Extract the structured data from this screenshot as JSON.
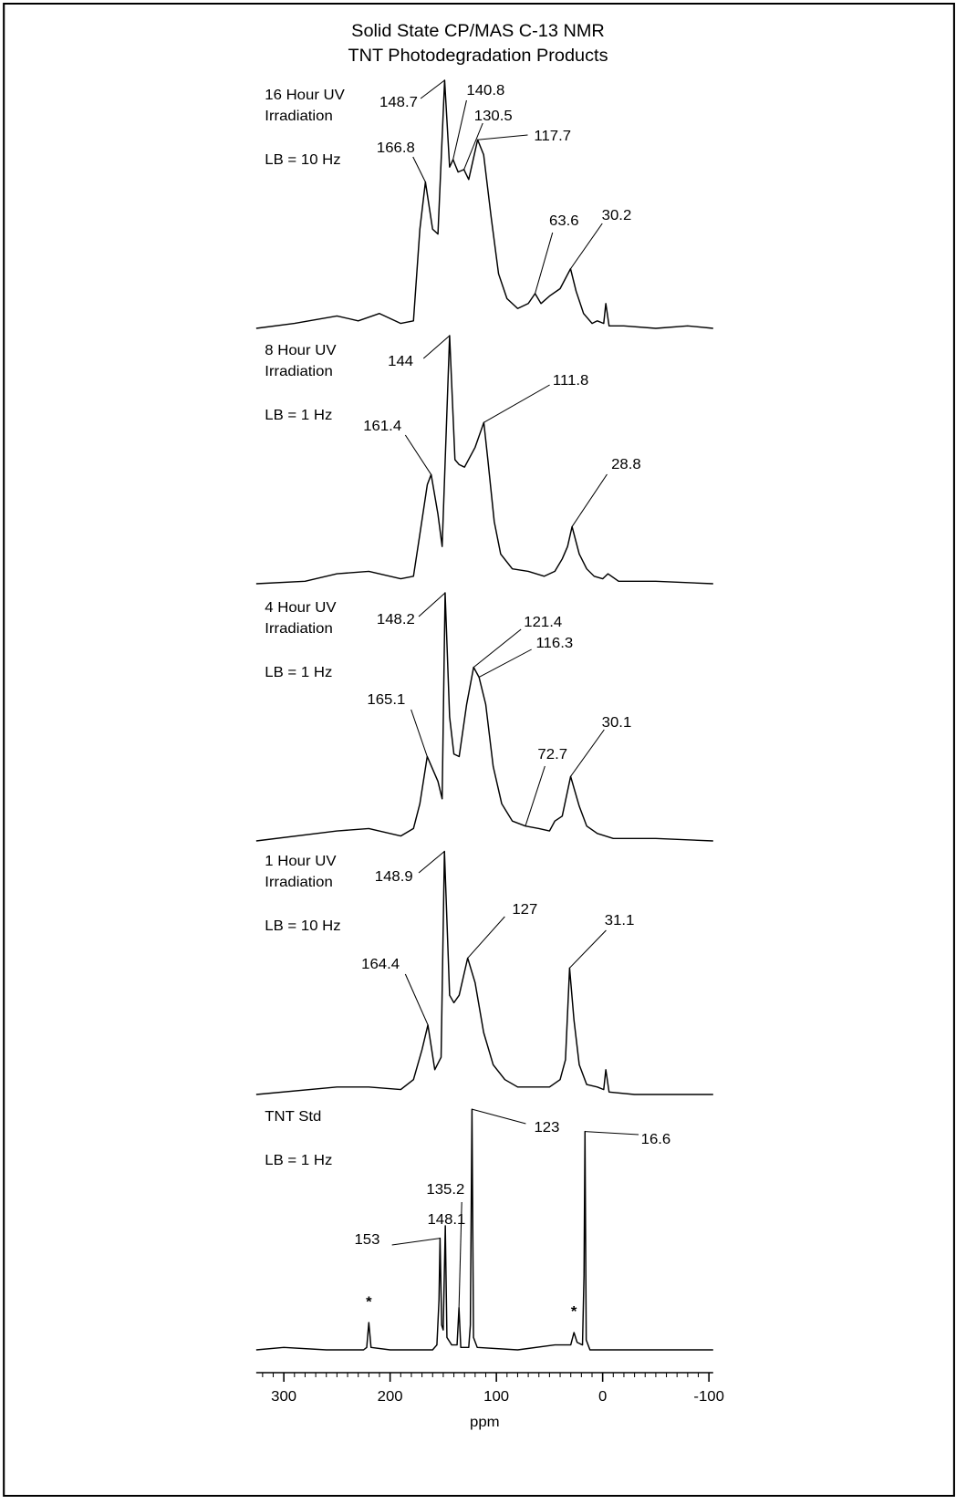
{
  "chart_data": {
    "type": "line",
    "title": [
      "Solid State CP/MAS C-13 NMR",
      "TNT Photodegradation Products"
    ],
    "xlabel": "ppm",
    "xlim": [
      326,
      -104
    ],
    "xticks": [
      300,
      200,
      100,
      0,
      -100
    ],
    "xminorticks": [
      320,
      310,
      290,
      280,
      270,
      260,
      250,
      240,
      230,
      220,
      210,
      190,
      180,
      170,
      160,
      150,
      140,
      130,
      120,
      110,
      90,
      80,
      70,
      60,
      50,
      40,
      30,
      20,
      10,
      -10,
      -20,
      -30,
      -40,
      -50,
      -60,
      -70,
      -80,
      -90
    ],
    "series": [
      {
        "name": [
          "16 Hour UV",
          "Irradiation"
        ],
        "note": "LB = 10 Hz",
        "color": "#000000",
        "peaks": [
          148.7,
          140.8,
          130.5,
          117.7,
          166.8,
          63.6,
          30.2
        ],
        "x": [
          326,
          290,
          250,
          230,
          210,
          190,
          178,
          172,
          166.8,
          160,
          155,
          148.7,
          144,
          140.8,
          136,
          130.5,
          126,
          117.7,
          112,
          105,
          98,
          90,
          80,
          70,
          63.6,
          58,
          50,
          40,
          30.2,
          25,
          18,
          10,
          5,
          -1,
          -3,
          -6,
          -20,
          -50,
          -80,
          -104
        ],
        "values": [
          0,
          2,
          5,
          3,
          6,
          2,
          3,
          40,
          59,
          40,
          38,
          100,
          65,
          68,
          63,
          64,
          60,
          76,
          70,
          45,
          22,
          12,
          8,
          10,
          14,
          10,
          13,
          16,
          24,
          15,
          6,
          2,
          3,
          2,
          10,
          1,
          1,
          0,
          1,
          0
        ]
      },
      {
        "name": [
          "8 Hour UV",
          "Irradiation"
        ],
        "note": "LB = 1 Hz",
        "color": "#000000",
        "peaks": [
          144.0,
          111.8,
          161.4,
          28.8
        ],
        "x": [
          326,
          280,
          250,
          220,
          190,
          178,
          172,
          165,
          161.4,
          155,
          151,
          144,
          139,
          135,
          130,
          120,
          111.8,
          108,
          102,
          96,
          85,
          70,
          55,
          45,
          38,
          33,
          28.8,
          22,
          15,
          8,
          0,
          -5,
          -15,
          -50,
          -104
        ],
        "values": [
          0,
          1,
          4,
          5,
          2,
          3,
          20,
          40,
          44,
          28,
          15,
          100,
          50,
          48,
          47,
          55,
          65,
          50,
          25,
          12,
          6,
          5,
          3,
          5,
          10,
          15,
          23,
          12,
          6,
          3,
          2,
          4,
          1,
          1,
          0
        ]
      },
      {
        "name": [
          "4 Hour UV",
          "Irradiation"
        ],
        "note": "LB = 1 Hz",
        "color": "#000000",
        "peaks": [
          148.2,
          121.4,
          116.3,
          165.1,
          72.7,
          30.1
        ],
        "x": [
          326,
          250,
          220,
          190,
          178,
          172,
          165.1,
          155,
          151,
          148.2,
          144,
          140,
          135,
          128,
          121.4,
          116.3,
          110,
          103,
          95,
          85,
          72.7,
          60,
          50,
          45,
          38,
          30.1,
          22,
          15,
          5,
          -10,
          -50,
          -104
        ],
        "values": [
          0,
          4,
          5,
          2,
          5,
          15,
          34,
          24,
          17,
          100,
          50,
          35,
          34,
          55,
          70,
          66,
          55,
          30,
          15,
          8,
          6,
          5,
          4,
          8,
          10,
          26,
          14,
          6,
          3,
          1,
          1,
          0
        ]
      },
      {
        "name": [
          "1 Hour UV",
          "Irradiation"
        ],
        "note": "LB = 10 Hz",
        "color": "#000000",
        "peaks": [
          148.9,
          127.0,
          164.4,
          31.1
        ],
        "x": [
          326,
          250,
          220,
          190,
          178,
          170,
          164.4,
          158,
          152,
          148.9,
          144,
          140,
          135,
          127,
          120,
          112,
          103,
          92,
          80,
          65,
          50,
          40,
          35,
          31.1,
          27,
          22,
          15,
          5,
          -1,
          -3,
          -6,
          -30,
          -104
        ],
        "values": [
          0,
          3,
          3,
          2,
          6,
          18,
          28,
          10,
          15,
          98,
          40,
          37,
          40,
          55,
          45,
          25,
          12,
          6,
          3,
          3,
          3,
          6,
          14,
          51,
          30,
          12,
          4,
          3,
          2,
          10,
          1,
          0,
          0
        ]
      },
      {
        "name": [
          "TNT Std"
        ],
        "note": "LB = 1 Hz",
        "color": "#000000",
        "peaks": [
          123.0,
          16.6,
          135.2,
          148.1,
          153.0
        ],
        "markers": [
          {
            "label": "*",
            "x": 220
          },
          {
            "label": "*",
            "x": 27
          }
        ],
        "x": [
          326,
          300,
          260,
          225,
          222,
          220,
          218,
          200,
          160,
          156,
          154,
          153,
          151.5,
          150,
          148.1,
          146.5,
          142,
          137,
          135.2,
          133.5,
          126,
          124.5,
          123,
          121.5,
          118,
          80,
          45,
          30,
          27,
          24,
          19,
          17.5,
          16.6,
          15.5,
          12,
          -50,
          -104
        ],
        "values": [
          0,
          1,
          0,
          0,
          1,
          11,
          1,
          0,
          0,
          2,
          20,
          45,
          10,
          8,
          50,
          5,
          2,
          2,
          17,
          1,
          1,
          10,
          97,
          5,
          1,
          0,
          2,
          2,
          7,
          3,
          2,
          30,
          88,
          4,
          0,
          0,
          0
        ]
      }
    ]
  }
}
